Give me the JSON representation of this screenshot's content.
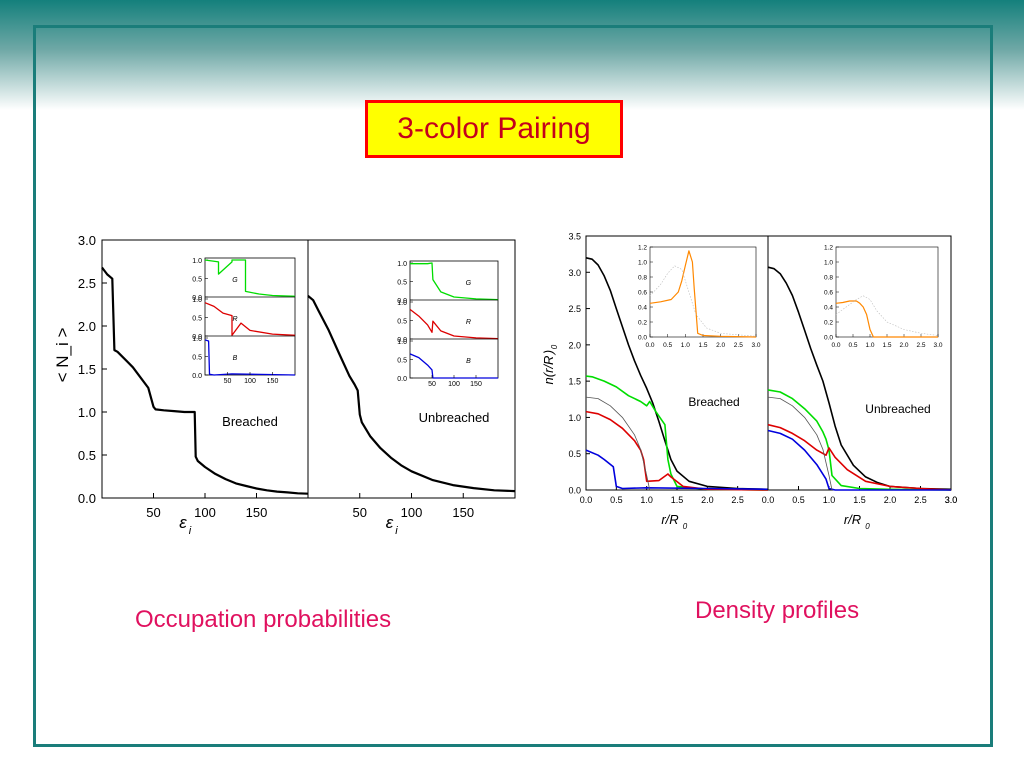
{
  "slide": {
    "title": "3-color Pairing",
    "caption_left": "Occupation probabilities",
    "caption_right": "Density profiles",
    "colors": {
      "frame": "#1a7d7a",
      "title_bg": "#ffff00",
      "title_border": "#ff0000",
      "title_text": "#c4001c",
      "caption": "#e0115f"
    }
  },
  "chart_data": [
    {
      "type": "line",
      "ylabel": "< N_i >",
      "xlabel": "ε_i",
      "ylim": [
        0,
        3.0
      ],
      "yticks": [
        "0.0",
        "0.5",
        "1.0",
        "1.5",
        "2.0",
        "2.5",
        "3.0"
      ],
      "xticks": [
        "50",
        "100",
        "150"
      ],
      "panels": [
        {
          "label": "Breached",
          "series": [
            {
              "color": "#000000",
              "x": [
                0,
                5,
                10,
                12,
                15,
                30,
                45,
                50,
                52,
                60,
                70,
                80,
                90,
                91,
                93,
                100,
                110,
                120,
                130,
                140,
                150,
                160,
                170,
                180,
                190,
                200
              ],
              "y": [
                2.68,
                2.6,
                2.55,
                1.72,
                1.7,
                1.52,
                1.28,
                1.06,
                1.03,
                1.02,
                1.01,
                1.0,
                1.0,
                0.48,
                0.43,
                0.36,
                0.28,
                0.22,
                0.17,
                0.14,
                0.11,
                0.09,
                0.075,
                0.065,
                0.055,
                0.05
              ]
            }
          ],
          "inset": {
            "xticks": [
              "50",
              "100",
              "150"
            ],
            "yticks": [
              "0.0",
              "0.5",
              "1.0"
            ],
            "panels": [
              {
                "label": "G",
                "color": "#00dd00",
                "x": [
                  0,
                  30,
                  30,
                  60,
                  60,
                  90,
                  90,
                  120,
                  150,
                  200
                ],
                "y": [
                  1.0,
                  0.95,
                  0.62,
                  0.95,
                  1.0,
                  1.0,
                  0.15,
                  0.08,
                  0.04,
                  0.02
                ]
              },
              {
                "label": "R",
                "color": "#dd0000",
                "x": [
                  0,
                  20,
                  40,
                  60,
                  60,
                  80,
                  80,
                  100,
                  150,
                  200
                ],
                "y": [
                  0.9,
                  0.8,
                  0.62,
                  0.55,
                  0.02,
                  0.35,
                  0.35,
                  0.15,
                  0.05,
                  0.02
                ]
              },
              {
                "label": "B",
                "color": "#0000dd",
                "x": [
                  0,
                  8,
                  10,
                  20,
                  60,
                  200
                ],
                "y": [
                  0.95,
                  0.92,
                  0.02,
                  0.0,
                  0.03,
                  0.0
                ]
              }
            ]
          }
        },
        {
          "label": "Unbreached",
          "series": [
            {
              "color": "#000000",
              "x": [
                0,
                5,
                10,
                20,
                30,
                40,
                45,
                48,
                50,
                52,
                60,
                70,
                80,
                90,
                100,
                120,
                140,
                160,
                180,
                200
              ],
              "y": [
                2.35,
                2.3,
                2.18,
                1.95,
                1.68,
                1.42,
                1.32,
                1.25,
                0.97,
                0.88,
                0.72,
                0.58,
                0.47,
                0.38,
                0.31,
                0.21,
                0.15,
                0.115,
                0.09,
                0.08
              ]
            }
          ],
          "inset": {
            "xticks": [
              "50",
              "100",
              "150"
            ],
            "yticks": [
              "0.0",
              "0.5",
              "1.0"
            ],
            "panels": [
              {
                "label": "G",
                "color": "#00dd00",
                "x": [
                  0,
                  40,
                  50,
                  52,
                  70,
                  100,
                  150,
                  200
                ],
                "y": [
                  0.98,
                  0.98,
                  1.0,
                  0.55,
                  0.22,
                  0.08,
                  0.03,
                  0.01
                ]
              },
              {
                "label": "R",
                "color": "#dd0000",
                "x": [
                  0,
                  20,
                  40,
                  50,
                  52,
                  70,
                  100,
                  150,
                  200
                ],
                "y": [
                  0.8,
                  0.62,
                  0.38,
                  0.18,
                  0.48,
                  0.22,
                  0.08,
                  0.03,
                  0.01
                ]
              },
              {
                "label": "B",
                "color": "#0000dd",
                "x": [
                  0,
                  20,
                  40,
                  50,
                  52,
                  200
                ],
                "y": [
                  0.65,
                  0.55,
                  0.35,
                  0.22,
                  0.0,
                  0.0
                ]
              }
            ]
          }
        }
      ]
    },
    {
      "type": "line",
      "ylabel": "n(r/R_0)",
      "xlabel": "r/R_0",
      "xlim": [
        0,
        3.0
      ],
      "ylim": [
        0,
        3.5
      ],
      "yticks": [
        "0.0",
        "0.5",
        "1.0",
        "1.5",
        "2.0",
        "2.5",
        "3.0",
        "3.5"
      ],
      "xticks": [
        "0.0",
        "0.5",
        "1.0",
        "1.5",
        "2.0",
        "2.5",
        "3.0"
      ],
      "panels": [
        {
          "label": "Breached",
          "series": [
            {
              "color": "#000000",
              "x": [
                0,
                0.1,
                0.2,
                0.3,
                0.4,
                0.5,
                0.6,
                0.7,
                0.8,
                0.9,
                1.0,
                1.1,
                1.2,
                1.3,
                1.4,
                1.5,
                1.7,
                2.0,
                2.5,
                3.0
              ],
              "y": [
                3.2,
                3.18,
                3.1,
                2.95,
                2.75,
                2.5,
                2.25,
                2.0,
                1.78,
                1.58,
                1.4,
                1.2,
                0.95,
                0.68,
                0.42,
                0.26,
                0.12,
                0.05,
                0.02,
                0.01
              ]
            },
            {
              "color": "#00dd00",
              "x": [
                0,
                0.1,
                0.3,
                0.5,
                0.7,
                0.9,
                1.0,
                1.05,
                1.15,
                1.3,
                1.35,
                1.4,
                1.5,
                2.0,
                3.0
              ],
              "y": [
                1.57,
                1.56,
                1.5,
                1.42,
                1.3,
                1.22,
                1.16,
                1.22,
                1.08,
                0.9,
                0.42,
                0.22,
                0.05,
                0.01,
                0.0
              ]
            },
            {
              "color": "#dd0000",
              "x": [
                0,
                0.2,
                0.4,
                0.6,
                0.8,
                0.9,
                0.95,
                1.0,
                1.2,
                1.35,
                1.4,
                1.6,
                2.0,
                3.0
              ],
              "y": [
                1.08,
                1.05,
                0.97,
                0.85,
                0.68,
                0.55,
                0.42,
                0.12,
                0.13,
                0.22,
                0.18,
                0.05,
                0.01,
                0.0
              ]
            },
            {
              "color": "#0000dd",
              "x": [
                0,
                0.2,
                0.3,
                0.45,
                0.5,
                0.6,
                1.0,
                2.0,
                3.0
              ],
              "y": [
                0.55,
                0.48,
                0.42,
                0.32,
                0.05,
                0.02,
                0.03,
                0.02,
                0.01
              ]
            },
            {
              "color": "#555555",
              "x": [
                0,
                0.2,
                0.4,
                0.6,
                0.8,
                0.9,
                1.0,
                1.05
              ],
              "y": [
                1.28,
                1.26,
                1.16,
                1.0,
                0.76,
                0.56,
                0.2,
                0.0
              ]
            }
          ],
          "inset": {
            "xticks": [
              "0.0",
              "0.5",
              "1.0",
              "1.5",
              "2.0",
              "2.5",
              "3.0"
            ],
            "yticks": [
              "0.0",
              "0.2",
              "0.4",
              "0.6",
              "0.8",
              "1.0",
              "1.2"
            ],
            "series": [
              {
                "color": "#ff8800",
                "x": [
                  0,
                  0.3,
                  0.6,
                  0.8,
                  0.9,
                  1.0,
                  1.1,
                  1.2,
                  1.25,
                  1.35,
                  1.5,
                  2.0,
                  3.0
                ],
                "y": [
                  0.45,
                  0.47,
                  0.5,
                  0.6,
                  0.75,
                  0.95,
                  1.15,
                  1.0,
                  0.65,
                  0.05,
                  0.02,
                  0.01,
                  0.0
                ]
              },
              {
                "color": "#bbbbbb",
                "x": [
                  0,
                  0.3,
                  0.5,
                  0.7,
                  0.9,
                  1.1,
                  1.3,
                  1.6,
                  2.0,
                  3.0
                ],
                "y": [
                  0.55,
                  0.7,
                  0.85,
                  0.95,
                  0.9,
                  0.6,
                  0.3,
                  0.12,
                  0.05,
                  0.01
                ]
              }
            ]
          }
        },
        {
          "label": "Unbreached",
          "series": [
            {
              "color": "#000000",
              "x": [
                0,
                0.1,
                0.2,
                0.3,
                0.4,
                0.5,
                0.6,
                0.7,
                0.8,
                0.9,
                1.0,
                1.1,
                1.2,
                1.4,
                1.6,
                1.8,
                2.0,
                2.5,
                3.0
              ],
              "y": [
                3.07,
                3.05,
                2.98,
                2.85,
                2.68,
                2.45,
                2.2,
                1.95,
                1.72,
                1.5,
                1.2,
                0.88,
                0.62,
                0.34,
                0.18,
                0.1,
                0.05,
                0.02,
                0.01
              ]
            },
            {
              "color": "#00dd00",
              "x": [
                0,
                0.2,
                0.4,
                0.6,
                0.8,
                0.9,
                0.95,
                1.0,
                1.05,
                1.2,
                1.5,
                2.0,
                3.0
              ],
              "y": [
                1.38,
                1.35,
                1.26,
                1.12,
                0.95,
                0.8,
                0.7,
                0.55,
                0.2,
                0.06,
                0.02,
                0.01,
                0.0
              ]
            },
            {
              "color": "#dd0000",
              "x": [
                0,
                0.2,
                0.4,
                0.6,
                0.8,
                0.95,
                1.0,
                1.1,
                1.3,
                1.6,
                2.0,
                2.5,
                3.0
              ],
              "y": [
                0.9,
                0.86,
                0.78,
                0.68,
                0.55,
                0.48,
                0.58,
                0.45,
                0.28,
                0.12,
                0.05,
                0.02,
                0.0
              ]
            },
            {
              "color": "#0000dd",
              "x": [
                0,
                0.2,
                0.4,
                0.6,
                0.8,
                0.95,
                1.0,
                1.1,
                3.0
              ],
              "y": [
                0.82,
                0.78,
                0.7,
                0.55,
                0.35,
                0.15,
                0.02,
                0.0,
                0.0
              ]
            },
            {
              "color": "#555555",
              "x": [
                0,
                0.2,
                0.4,
                0.6,
                0.8,
                0.9,
                1.0,
                1.05
              ],
              "y": [
                1.28,
                1.26,
                1.16,
                1.0,
                0.76,
                0.56,
                0.2,
                0.0
              ]
            }
          ],
          "inset": {
            "xticks": [
              "0.0",
              "0.5",
              "1.0",
              "1.5",
              "2.0",
              "2.5",
              "3.0"
            ],
            "yticks": [
              "0.0",
              "0.2",
              "0.4",
              "0.6",
              "0.8",
              "1.0",
              "1.2"
            ],
            "series": [
              {
                "color": "#ff8800",
                "x": [
                  0,
                  0.2,
                  0.4,
                  0.6,
                  0.7,
                  0.8,
                  0.9,
                  1.0,
                  1.1,
                  1.2,
                  3.0
                ],
                "y": [
                  0.45,
                  0.46,
                  0.48,
                  0.48,
                  0.45,
                  0.4,
                  0.3,
                  0.1,
                  0.0,
                  0.0,
                  0.0
                ]
              },
              {
                "color": "#bbbbbb",
                "x": [
                  0,
                  0.3,
                  0.6,
                  0.8,
                  1.0,
                  1.2,
                  1.5,
                  2.0,
                  2.5,
                  3.0
                ],
                "y": [
                  0.3,
                  0.4,
                  0.5,
                  0.55,
                  0.5,
                  0.35,
                  0.2,
                  0.1,
                  0.05,
                  0.02
                ]
              }
            ]
          }
        }
      ]
    }
  ]
}
